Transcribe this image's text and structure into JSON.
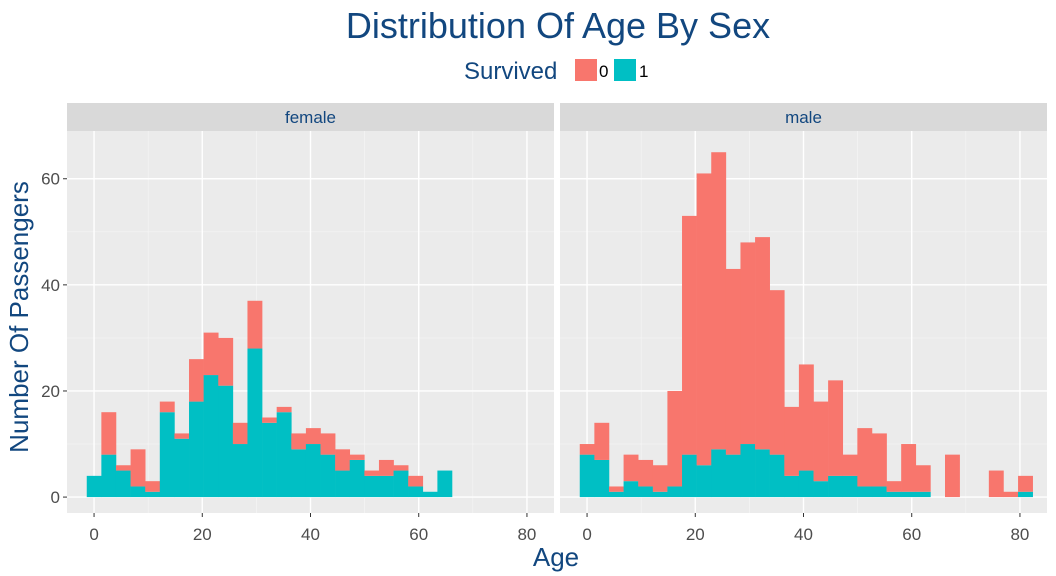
{
  "chart_data": {
    "type": "bar",
    "subtype": "stacked-histogram-faceted",
    "title": "Distribution Of Age By Sex",
    "xlabel": "Age",
    "ylabel": "Number Of Passengers",
    "xlim": [
      -5,
      85
    ],
    "ylim": [
      -3,
      69
    ],
    "x_ticks": [
      0,
      20,
      40,
      60,
      80
    ],
    "y_ticks": [
      0,
      20,
      40,
      60
    ],
    "grid": true,
    "bin_width": 2.7,
    "legend": {
      "title": "Survived",
      "position": "top",
      "entries": [
        {
          "label": "0",
          "color": "#f8766d"
        },
        {
          "label": "1",
          "color": "#00bfc4"
        }
      ]
    },
    "facets": [
      {
        "name": "female",
        "bin_starts": [
          -1.35,
          1.35,
          4.05,
          6.75,
          9.45,
          12.15,
          14.85,
          17.55,
          20.25,
          22.95,
          25.65,
          28.35,
          31.05,
          33.75,
          36.45,
          39.15,
          41.85,
          44.55,
          47.25,
          49.95,
          52.65,
          55.35,
          58.05,
          60.75,
          63.45
        ],
        "series": [
          {
            "name": "1",
            "values": [
              4,
              8,
              5,
              2,
              1,
              16,
              11,
              18,
              23,
              21,
              10,
              28,
              14,
              16,
              9,
              10,
              8,
              5,
              7,
              4,
              4,
              5,
              2,
              1,
              5
            ]
          },
          {
            "name": "0",
            "values": [
              0,
              8,
              1,
              7,
              2,
              2,
              1,
              8,
              8,
              9,
              4,
              9,
              1,
              1,
              3,
              3,
              4,
              4,
              1,
              1,
              3,
              1,
              2,
              0,
              0
            ]
          }
        ]
      },
      {
        "name": "male",
        "bin_starts": [
          -1.35,
          1.35,
          4.05,
          6.75,
          9.45,
          12.15,
          14.85,
          17.55,
          20.25,
          22.95,
          25.65,
          28.35,
          31.05,
          33.75,
          36.45,
          39.15,
          41.85,
          44.55,
          47.25,
          49.95,
          52.65,
          55.35,
          58.05,
          60.75,
          63.45,
          66.15,
          68.85,
          71.55,
          74.25,
          76.95,
          79.65
        ],
        "series": [
          {
            "name": "1",
            "values": [
              8,
              7,
              1,
              3,
              2,
              1,
              2,
              8,
              6,
              9,
              8,
              10,
              9,
              8,
              4,
              5,
              3,
              4,
              4,
              2,
              2,
              1,
              1,
              1,
              0,
              0,
              0,
              0,
              0,
              0,
              1
            ]
          },
          {
            "name": "0",
            "values": [
              2,
              7,
              1,
              5,
              5,
              5,
              18,
              45,
              55,
              56,
              35,
              38,
              40,
              31,
              13,
              20,
              15,
              18,
              4,
              11,
              10,
              2,
              9,
              5,
              0,
              8,
              0,
              0,
              5,
              1,
              3
            ]
          }
        ]
      }
    ]
  }
}
